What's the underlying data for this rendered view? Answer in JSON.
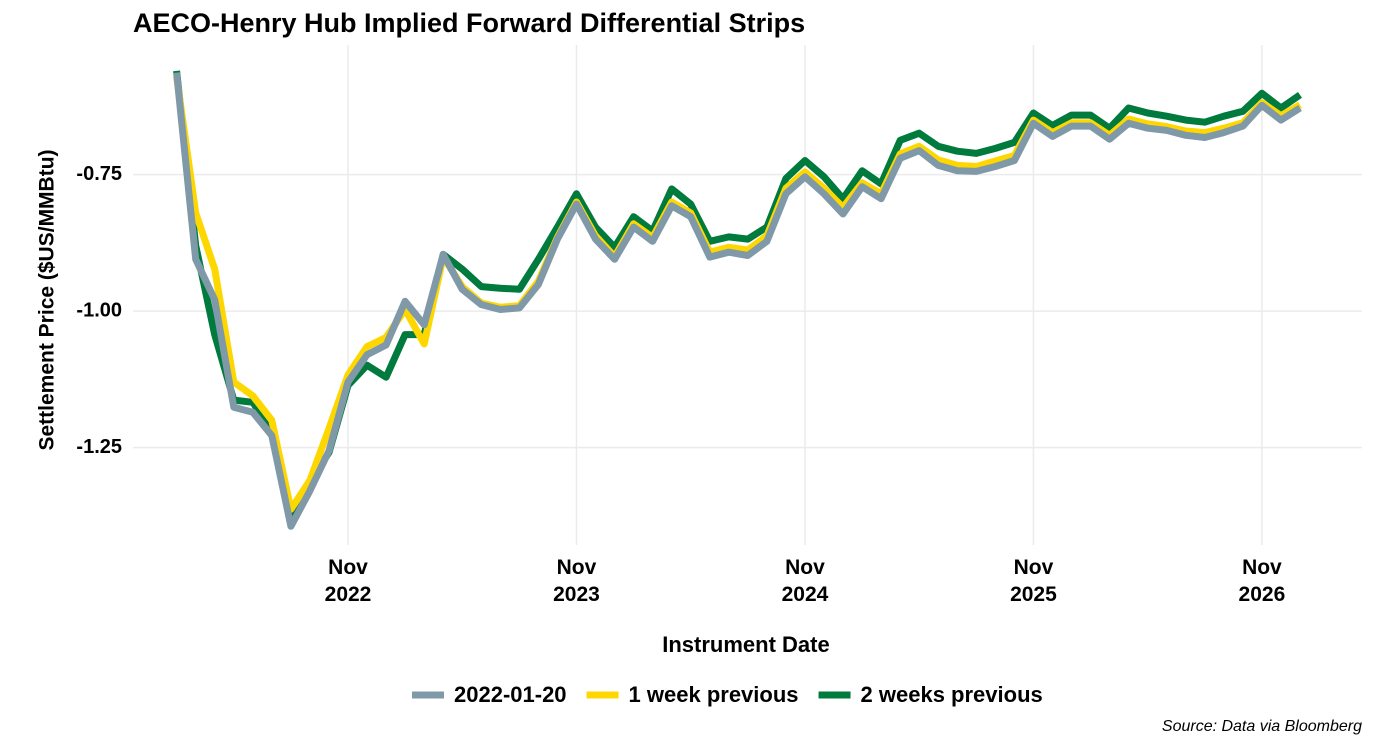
{
  "chart_data": {
    "type": "line",
    "title": "AECO-Henry Hub Implied Forward Differential Strips",
    "xlabel": "Instrument Date",
    "ylabel": "Settlement Price ($US/MMBtu)",
    "source": "Source: Data via Bloomberg",
    "x": [
      "2022-02",
      "2022-03",
      "2022-04",
      "2022-05",
      "2022-06",
      "2022-07",
      "2022-08",
      "2022-09",
      "2022-10",
      "2022-11",
      "2022-12",
      "2023-01",
      "2023-02",
      "2023-03",
      "2023-04",
      "2023-05",
      "2023-06",
      "2023-07",
      "2023-08",
      "2023-09",
      "2023-10",
      "2023-11",
      "2023-12",
      "2024-01",
      "2024-02",
      "2024-03",
      "2024-04",
      "2024-05",
      "2024-06",
      "2024-07",
      "2024-08",
      "2024-09",
      "2024-10",
      "2024-11",
      "2024-12",
      "2025-01",
      "2025-02",
      "2025-03",
      "2025-04",
      "2025-05",
      "2025-06",
      "2025-07",
      "2025-08",
      "2025-09",
      "2025-10",
      "2025-11",
      "2025-12",
      "2026-01",
      "2026-02",
      "2026-03",
      "2026-04",
      "2026-05",
      "2026-06",
      "2026-07",
      "2026-08",
      "2026-09",
      "2026-10",
      "2026-11",
      "2026-12",
      "2027-01"
    ],
    "series": [
      {
        "name": "2 weeks previous",
        "color": "#007a3d",
        "values": [
          -0.56,
          -0.88,
          -1.043,
          -1.163,
          -1.167,
          -1.219,
          -1.375,
          -1.311,
          -1.259,
          -1.136,
          -1.099,
          -1.121,
          -1.043,
          -1.043,
          -0.896,
          -0.923,
          -0.955,
          -0.958,
          -0.96,
          -0.905,
          -0.846,
          -0.785,
          -0.846,
          -0.883,
          -0.827,
          -0.853,
          -0.776,
          -0.804,
          -0.872,
          -0.864,
          -0.868,
          -0.846,
          -0.757,
          -0.724,
          -0.754,
          -0.794,
          -0.743,
          -0.767,
          -0.687,
          -0.674,
          -0.698,
          -0.707,
          -0.711,
          -0.702,
          -0.691,
          -0.637,
          -0.66,
          -0.641,
          -0.641,
          -0.665,
          -0.628,
          -0.637,
          -0.643,
          -0.65,
          -0.654,
          -0.643,
          -0.634,
          -0.601,
          -0.628,
          -0.604
        ]
      },
      {
        "name": "1 week previous",
        "color": "#ffd700",
        "values": [
          -0.57,
          -0.82,
          -0.923,
          -1.13,
          -1.155,
          -1.2,
          -1.363,
          -1.31,
          -1.215,
          -1.117,
          -1.065,
          -1.048,
          -0.997,
          -1.06,
          -0.9,
          -0.955,
          -0.985,
          -0.993,
          -0.99,
          -0.945,
          -0.865,
          -0.8,
          -0.862,
          -0.9,
          -0.84,
          -0.865,
          -0.8,
          -0.82,
          -0.892,
          -0.883,
          -0.888,
          -0.862,
          -0.775,
          -0.745,
          -0.775,
          -0.81,
          -0.765,
          -0.785,
          -0.712,
          -0.698,
          -0.723,
          -0.733,
          -0.735,
          -0.725,
          -0.715,
          -0.65,
          -0.673,
          -0.655,
          -0.655,
          -0.678,
          -0.648,
          -0.657,
          -0.662,
          -0.67,
          -0.673,
          -0.665,
          -0.655,
          -0.618,
          -0.642,
          -0.622
        ]
      },
      {
        "name": "2022-01-20",
        "color": "#7f99a8",
        "values": [
          -0.563,
          -0.905,
          -0.979,
          -1.176,
          -1.185,
          -1.228,
          -1.394,
          -1.329,
          -1.256,
          -1.13,
          -1.08,
          -1.062,
          -0.982,
          -1.025,
          -0.896,
          -0.96,
          -0.988,
          -0.997,
          -0.994,
          -0.951,
          -0.868,
          -0.804,
          -0.868,
          -0.905,
          -0.846,
          -0.872,
          -0.807,
          -0.827,
          -0.901,
          -0.892,
          -0.898,
          -0.872,
          -0.785,
          -0.754,
          -0.785,
          -0.822,
          -0.772,
          -0.794,
          -0.72,
          -0.706,
          -0.733,
          -0.743,
          -0.744,
          -0.735,
          -0.724,
          -0.656,
          -0.68,
          -0.661,
          -0.661,
          -0.685,
          -0.656,
          -0.665,
          -0.669,
          -0.678,
          -0.682,
          -0.673,
          -0.661,
          -0.623,
          -0.65,
          -0.628
        ]
      }
    ],
    "legend_order": [
      "2022-01-20",
      "1 week previous",
      "2 weeks previous"
    ],
    "xticks": [
      {
        "value": "2022-11",
        "label": "Nov 2022"
      },
      {
        "value": "2023-11",
        "label": "Nov 2023"
      },
      {
        "value": "2024-11",
        "label": "Nov 2024"
      },
      {
        "value": "2025-11",
        "label": "Nov 2025"
      },
      {
        "value": "2026-11",
        "label": "Nov 2026"
      }
    ],
    "ylim": [
      -1.41,
      -0.54
    ],
    "yticks": [
      -0.75,
      {
        "value": -1.0,
        "label": "-1.00"
      },
      -1.25
    ],
    "grid": true,
    "legend": "bottom"
  }
}
